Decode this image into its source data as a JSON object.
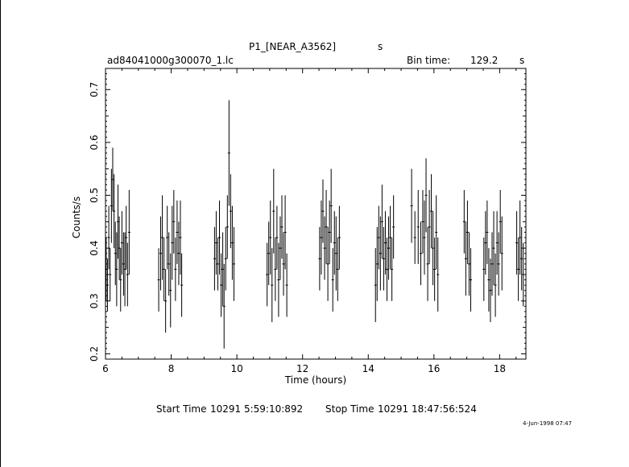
{
  "header": {
    "title": "P1_[NEAR_A3562]",
    "title_unit": "s",
    "filename": "ad84041000g300070_1.lc",
    "bin_time_label": "Bin time:",
    "bin_time_value": "129.2",
    "bin_time_unit": "s"
  },
  "footer": {
    "start_label": "Start Time",
    "start_value": "10291  5:59:10:892",
    "stop_label": "Stop Time",
    "stop_value": "10291  18:47:56:524",
    "date_stamp": "4-Jun-1998 07:47"
  },
  "chart_data": {
    "type": "scatter",
    "xlabel": "Time (hours)",
    "ylabel": "Counts/s",
    "xlim": [
      6,
      18.8
    ],
    "ylim": [
      0.19,
      0.74
    ],
    "xticks": [
      6,
      8,
      10,
      12,
      14,
      16,
      18
    ],
    "yticks": [
      0.2,
      0.3,
      0.4,
      0.5,
      0.6,
      0.7
    ],
    "grid": false,
    "error_bars": "vertical",
    "points": [
      [
        6.02,
        0.36,
        0.06
      ],
      [
        6.06,
        0.33,
        0.05
      ],
      [
        6.1,
        0.42,
        0.06
      ],
      [
        6.14,
        0.35,
        0.05
      ],
      [
        6.18,
        0.48,
        0.07
      ],
      [
        6.22,
        0.53,
        0.06
      ],
      [
        6.26,
        0.47,
        0.07
      ],
      [
        6.3,
        0.39,
        0.06
      ],
      [
        6.34,
        0.36,
        0.07
      ],
      [
        6.38,
        0.45,
        0.07
      ],
      [
        6.42,
        0.4,
        0.06
      ],
      [
        6.46,
        0.34,
        0.06
      ],
      [
        6.5,
        0.41,
        0.06
      ],
      [
        6.55,
        0.37,
        0.06
      ],
      [
        6.59,
        0.36,
        0.07
      ],
      [
        6.63,
        0.42,
        0.06
      ],
      [
        6.67,
        0.35,
        0.06
      ],
      [
        6.72,
        0.43,
        0.08
      ],
      [
        7.62,
        0.34,
        0.06
      ],
      [
        7.68,
        0.39,
        0.07
      ],
      [
        7.73,
        0.42,
        0.08
      ],
      [
        7.78,
        0.36,
        0.06
      ],
      [
        7.83,
        0.3,
        0.06
      ],
      [
        7.88,
        0.42,
        0.06
      ],
      [
        7.93,
        0.37,
        0.06
      ],
      [
        7.98,
        0.32,
        0.07
      ],
      [
        8.03,
        0.41,
        0.07
      ],
      [
        8.08,
        0.45,
        0.06
      ],
      [
        8.13,
        0.36,
        0.06
      ],
      [
        8.18,
        0.43,
        0.06
      ],
      [
        8.23,
        0.39,
        0.06
      ],
      [
        8.28,
        0.42,
        0.07
      ],
      [
        8.32,
        0.33,
        0.06
      ],
      [
        9.32,
        0.38,
        0.06
      ],
      [
        9.37,
        0.41,
        0.06
      ],
      [
        9.42,
        0.37,
        0.05
      ],
      [
        9.47,
        0.42,
        0.07
      ],
      [
        9.52,
        0.33,
        0.06
      ],
      [
        9.57,
        0.36,
        0.07
      ],
      [
        9.61,
        0.29,
        0.08
      ],
      [
        9.66,
        0.38,
        0.06
      ],
      [
        9.71,
        0.44,
        0.06
      ],
      [
        9.76,
        0.58,
        0.1
      ],
      [
        9.81,
        0.47,
        0.07
      ],
      [
        9.86,
        0.41,
        0.07
      ],
      [
        9.91,
        0.37,
        0.07
      ],
      [
        10.92,
        0.35,
        0.06
      ],
      [
        10.97,
        0.39,
        0.06
      ],
      [
        11.02,
        0.42,
        0.07
      ],
      [
        11.07,
        0.33,
        0.07
      ],
      [
        11.12,
        0.47,
        0.08
      ],
      [
        11.17,
        0.36,
        0.06
      ],
      [
        11.22,
        0.42,
        0.06
      ],
      [
        11.27,
        0.34,
        0.07
      ],
      [
        11.32,
        0.4,
        0.06
      ],
      [
        11.37,
        0.44,
        0.06
      ],
      [
        11.42,
        0.37,
        0.06
      ],
      [
        11.47,
        0.43,
        0.07
      ],
      [
        11.52,
        0.33,
        0.06
      ],
      [
        12.52,
        0.38,
        0.06
      ],
      [
        12.57,
        0.42,
        0.07
      ],
      [
        12.62,
        0.47,
        0.06
      ],
      [
        12.67,
        0.4,
        0.06
      ],
      [
        12.72,
        0.44,
        0.07
      ],
      [
        12.77,
        0.37,
        0.07
      ],
      [
        12.82,
        0.43,
        0.06
      ],
      [
        12.87,
        0.48,
        0.07
      ],
      [
        12.92,
        0.34,
        0.06
      ],
      [
        12.97,
        0.41,
        0.06
      ],
      [
        13.02,
        0.39,
        0.07
      ],
      [
        13.07,
        0.36,
        0.06
      ],
      [
        13.12,
        0.42,
        0.06
      ],
      [
        14.22,
        0.33,
        0.07
      ],
      [
        14.27,
        0.37,
        0.07
      ],
      [
        14.32,
        0.42,
        0.06
      ],
      [
        14.37,
        0.39,
        0.07
      ],
      [
        14.42,
        0.45,
        0.07
      ],
      [
        14.47,
        0.38,
        0.06
      ],
      [
        14.52,
        0.41,
        0.06
      ],
      [
        14.57,
        0.36,
        0.06
      ],
      [
        14.62,
        0.4,
        0.06
      ],
      [
        14.67,
        0.42,
        0.06
      ],
      [
        14.72,
        0.36,
        0.06
      ],
      [
        14.77,
        0.44,
        0.06
      ],
      [
        15.32,
        0.48,
        0.07
      ],
      [
        15.42,
        0.42,
        0.05
      ],
      [
        15.52,
        0.44,
        0.07
      ],
      [
        15.6,
        0.39,
        0.06
      ],
      [
        15.66,
        0.45,
        0.06
      ],
      [
        15.71,
        0.42,
        0.07
      ],
      [
        15.76,
        0.5,
        0.07
      ],
      [
        15.81,
        0.37,
        0.07
      ],
      [
        15.86,
        0.44,
        0.07
      ],
      [
        15.92,
        0.47,
        0.07
      ],
      [
        15.97,
        0.4,
        0.07
      ],
      [
        16.02,
        0.36,
        0.06
      ],
      [
        16.07,
        0.43,
        0.07
      ],
      [
        16.12,
        0.35,
        0.07
      ],
      [
        16.92,
        0.45,
        0.06
      ],
      [
        16.97,
        0.38,
        0.07
      ],
      [
        17.02,
        0.43,
        0.06
      ],
      [
        17.07,
        0.37,
        0.06
      ],
      [
        17.12,
        0.34,
        0.06
      ],
      [
        17.52,
        0.36,
        0.06
      ],
      [
        17.57,
        0.41,
        0.06
      ],
      [
        17.62,
        0.43,
        0.06
      ],
      [
        17.67,
        0.34,
        0.06
      ],
      [
        17.72,
        0.32,
        0.06
      ],
      [
        17.77,
        0.37,
        0.06
      ],
      [
        17.82,
        0.4,
        0.07
      ],
      [
        17.87,
        0.33,
        0.06
      ],
      [
        17.92,
        0.41,
        0.06
      ],
      [
        17.97,
        0.37,
        0.06
      ],
      [
        18.02,
        0.45,
        0.06
      ],
      [
        18.07,
        0.39,
        0.07
      ],
      [
        18.52,
        0.41,
        0.06
      ],
      [
        18.57,
        0.36,
        0.06
      ],
      [
        18.62,
        0.42,
        0.07
      ],
      [
        18.67,
        0.38,
        0.06
      ],
      [
        18.72,
        0.35,
        0.06
      ]
    ]
  }
}
